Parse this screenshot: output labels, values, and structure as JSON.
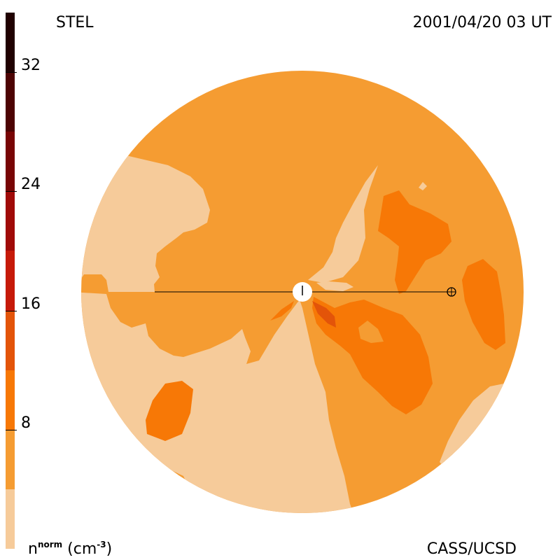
{
  "header": {
    "title": "STEL",
    "timestamp": "2001/04/20 03 UT"
  },
  "footer": {
    "credit": "CASS/UCSD",
    "unit_base": "n",
    "unit_sup": "norm",
    "unit_rest": "(cm",
    "unit_exp": "-3",
    "unit_close": ")"
  },
  "colorbar": {
    "ticks": [
      "32",
      "24",
      "16",
      "8"
    ],
    "tick_values": [
      32,
      24,
      16,
      8
    ],
    "range": [
      0,
      36
    ],
    "bands": [
      {
        "from": 0,
        "to": 4,
        "color": "#f6cb9a"
      },
      {
        "from": 4,
        "to": 8,
        "color": "#f59c32"
      },
      {
        "from": 8,
        "to": 12,
        "color": "#f77806"
      },
      {
        "from": 12,
        "to": 16,
        "color": "#e35409"
      },
      {
        "from": 16,
        "to": 20,
        "color": "#c61a09"
      },
      {
        "from": 20,
        "to": 24,
        "color": "#a00a08"
      },
      {
        "from": 24,
        "to": 28,
        "color": "#780505"
      },
      {
        "from": 28,
        "to": 32,
        "color": "#4d0303"
      },
      {
        "from": 32,
        "to": 36,
        "color": "#200101"
      }
    ]
  },
  "colors": {
    "level_1": "#f6cb9a",
    "level_2": "#f59c32",
    "level_3": "#f77806",
    "level_4": "#e35409"
  }
}
